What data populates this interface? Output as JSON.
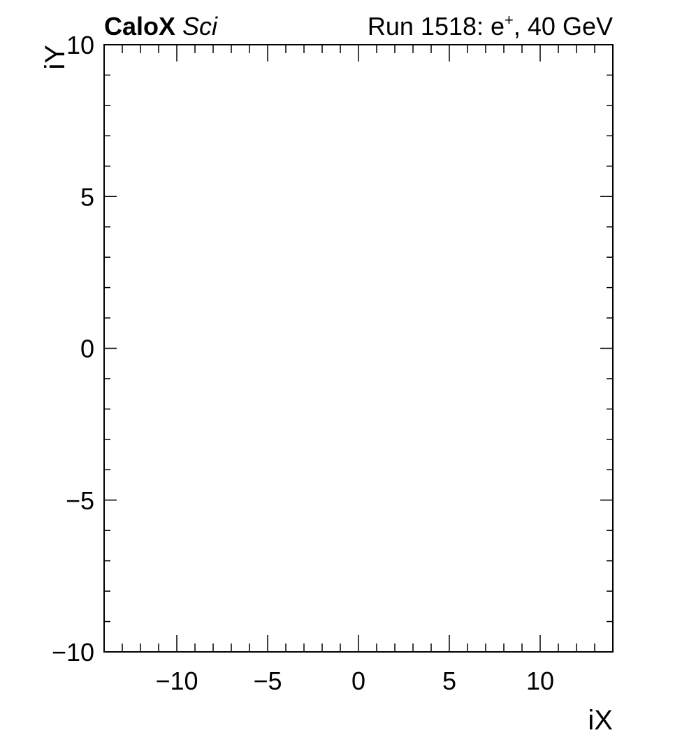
{
  "chart_data": {
    "type": "heatmap",
    "title_left_bold": "CaloX",
    "title_left_italic": "Sci",
    "title_right_main": "Run 1518: e",
    "title_right_sup": "+",
    "title_right_tail": ", 40 GeV",
    "xlabel": "iX",
    "ylabel": "iY",
    "xlim": [
      -14,
      14
    ],
    "ylim": [
      -10,
      10
    ],
    "x_major_ticks": [
      -10,
      -5,
      0,
      5,
      10
    ],
    "x_tick_labels": [
      "−10",
      "−5",
      "0",
      "5",
      "10"
    ],
    "y_major_ticks": [
      -10,
      -5,
      0,
      5,
      10
    ],
    "y_tick_labels": [
      "−10",
      "−5",
      "0",
      "5",
      "10"
    ],
    "x_minor_step": 1,
    "y_minor_step": 1,
    "grid": false,
    "values": []
  }
}
